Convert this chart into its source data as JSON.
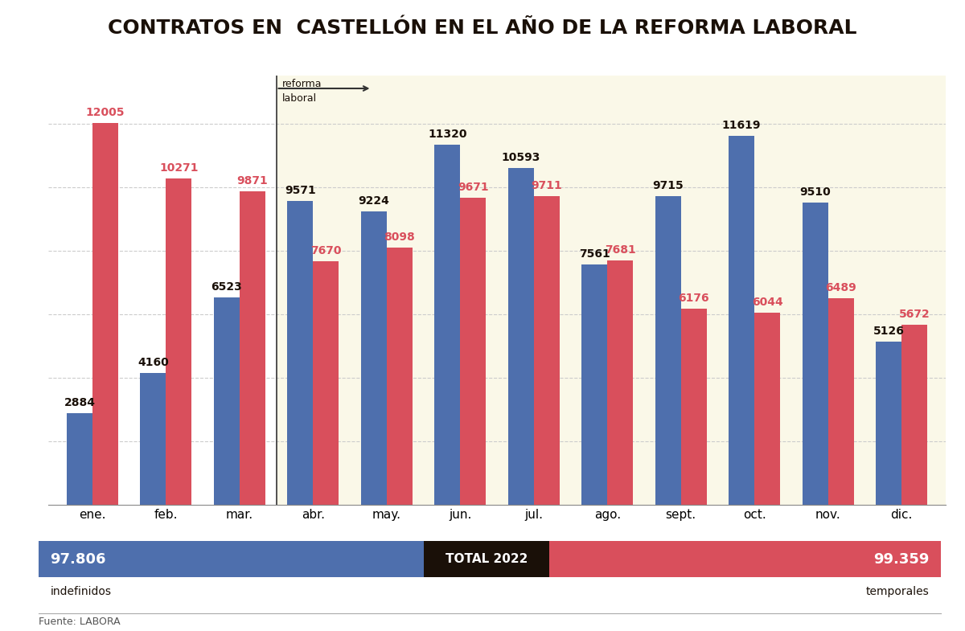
{
  "title": "CONTRATOS EN  CASTELLÓN EN EL AÑO DE LA REFORMA LABORAL",
  "months": [
    "ene.",
    "feb.",
    "mar.",
    "abr.",
    "may.",
    "jun.",
    "jul.",
    "ago.",
    "sept.",
    "oct.",
    "nov.",
    "dic."
  ],
  "indefinidos": [
    2884,
    4160,
    6523,
    9571,
    9224,
    11320,
    10593,
    7561,
    9715,
    11619,
    9510,
    5126
  ],
  "temporales": [
    12005,
    10271,
    9871,
    7670,
    8098,
    9671,
    9711,
    7681,
    6176,
    6044,
    6489,
    5672
  ],
  "color_indefinidos": "#4e6fad",
  "color_temporales": "#d94f5c",
  "color_pre_reform_bg": "#ffffff",
  "color_post_reform_bg": "#faf8e8",
  "bar_width": 0.35,
  "reforma_month_index": 3,
  "total_indefinidos": "97.806",
  "total_temporales": "99.359",
  "total_label": "TOTAL 2022",
  "label_indefinidos": "indefinidos",
  "label_temporales": "temporales",
  "source": "Fuente: LABORA",
  "reforma_line1": "reforma",
  "reforma_line2": "laboral",
  "ylim": [
    0,
    13500
  ],
  "grid_color": "#cccccc",
  "color_total_bg": "#1a1008",
  "color_summary_blue": "#4e6fad",
  "color_summary_red": "#d94f5c",
  "grid_values": [
    2000,
    4000,
    6000,
    8000,
    10000,
    12000
  ],
  "total_indefinidos_val": 97806,
  "total_temporales_val": 99359
}
